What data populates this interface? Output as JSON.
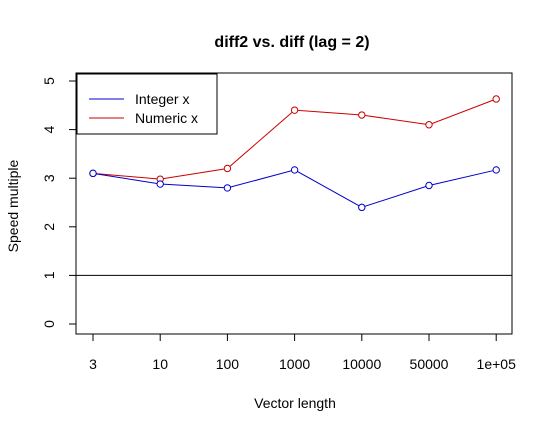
{
  "chart_data": {
    "type": "line",
    "title": "diff2 vs. diff (lag = 2)",
    "xlabel": "Vector length",
    "ylabel": "Speed multiple",
    "categories": [
      "3",
      "10",
      "100",
      "1000",
      "10000",
      "50000",
      "1e+05"
    ],
    "ylim": [
      0,
      5
    ],
    "yticks": [
      "0",
      "1",
      "2",
      "3",
      "4",
      "5"
    ],
    "reference_line": 1,
    "legend_position": "top-left",
    "series": [
      {
        "name": "Integer x",
        "color": "#0000cc",
        "values": [
          3.1,
          2.88,
          2.8,
          3.17,
          2.4,
          2.85,
          3.17
        ]
      },
      {
        "name": "Numeric x",
        "color": "#cc0000",
        "values": [
          3.1,
          2.98,
          3.2,
          4.4,
          4.3,
          4.1,
          4.63
        ]
      }
    ]
  }
}
